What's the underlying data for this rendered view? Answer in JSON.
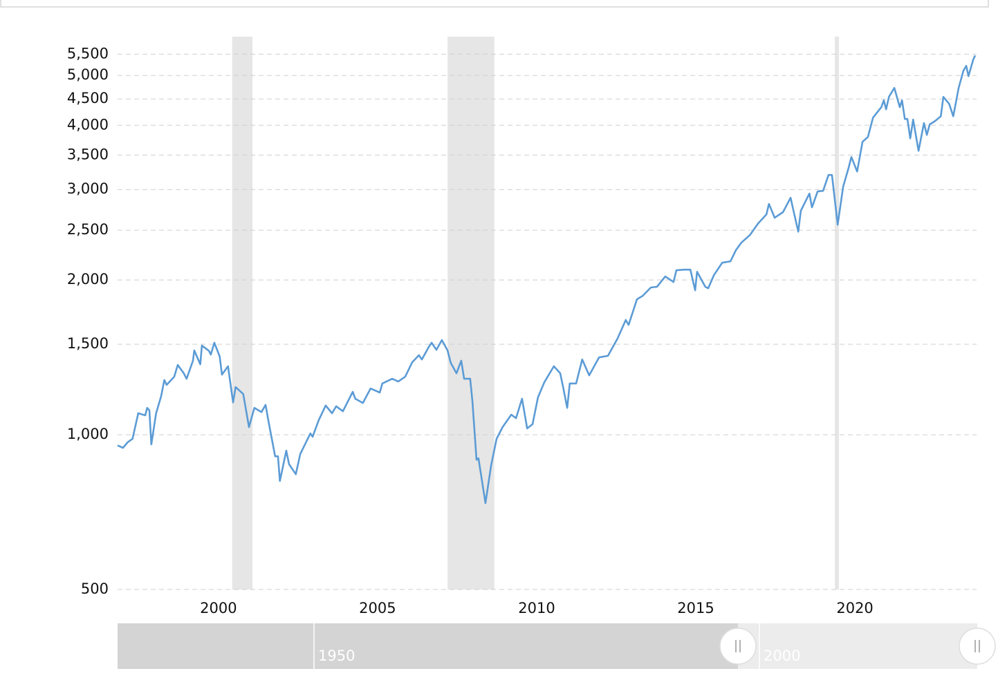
{
  "chart_data": {
    "type": "line",
    "log_scale": true,
    "grid": true,
    "color": "#5b9bd5",
    "xlim": [
      1996.83,
      2023.78
    ],
    "ylim": [
      500,
      5950
    ],
    "xticks": [
      2000,
      2005,
      2010,
      2015,
      2020
    ],
    "yticks": [
      {
        "value": 500,
        "label": "500"
      },
      {
        "value": 1000,
        "label": "1,000"
      },
      {
        "value": 1500,
        "label": "1,500"
      },
      {
        "value": 2000,
        "label": "2,000"
      },
      {
        "value": 2500,
        "label": "2,500"
      },
      {
        "value": 3000,
        "label": "3,000"
      },
      {
        "value": 3500,
        "label": "3,500"
      },
      {
        "value": 4000,
        "label": "4,000"
      },
      {
        "value": 4500,
        "label": "4,500"
      },
      {
        "value": 5000,
        "label": "5,000"
      },
      {
        "value": 5500,
        "label": "5,500"
      }
    ],
    "recessions": [
      [
        2000.43,
        2001.07
      ],
      [
        2007.2,
        2008.67
      ],
      [
        2019.37,
        2019.5
      ]
    ],
    "x": [
      1996.83,
      1997.0,
      1997.15,
      1997.3,
      1997.48,
      1997.7,
      1997.76,
      1997.83,
      1997.89,
      1998.04,
      1998.2,
      1998.3,
      1998.37,
      1998.61,
      1998.72,
      1998.91,
      1999.0,
      1999.2,
      1999.24,
      1999.43,
      1999.48,
      1999.7,
      1999.76,
      1999.87,
      2000.04,
      2000.11,
      2000.3,
      2000.46,
      2000.54,
      2000.78,
      2000.96,
      2001.13,
      2001.35,
      2001.48,
      2001.57,
      2001.78,
      2001.87,
      2001.93,
      2002.13,
      2002.22,
      2002.43,
      2002.57,
      2002.78,
      2002.89,
      2002.96,
      2003.15,
      2003.37,
      2003.57,
      2003.7,
      2003.91,
      2004.22,
      2004.3,
      2004.54,
      2004.78,
      2005.07,
      2005.15,
      2005.46,
      2005.65,
      2005.87,
      2006.09,
      2006.3,
      2006.39,
      2006.61,
      2006.7,
      2006.85,
      2007.02,
      2007.2,
      2007.3,
      2007.48,
      2007.63,
      2007.72,
      2007.91,
      2007.98,
      2008.11,
      2008.17,
      2008.39,
      2008.57,
      2008.74,
      2008.93,
      2009.2,
      2009.35,
      2009.54,
      2009.7,
      2009.87,
      2010.04,
      2010.24,
      2010.54,
      2010.74,
      2010.83,
      2010.96,
      2011.04,
      2011.24,
      2011.43,
      2011.65,
      2011.96,
      2012.24,
      2012.54,
      2012.8,
      2012.89,
      2013.15,
      2013.33,
      2013.59,
      2013.78,
      2014.04,
      2014.3,
      2014.39,
      2014.65,
      2014.83,
      2014.98,
      2015.04,
      2015.3,
      2015.39,
      2015.57,
      2015.83,
      2016.09,
      2016.26,
      2016.43,
      2016.7,
      2016.96,
      2017.22,
      2017.3,
      2017.48,
      2017.74,
      2017.98,
      2018.07,
      2018.22,
      2018.3,
      2018.57,
      2018.65,
      2018.83,
      2019.0,
      2019.17,
      2019.28,
      2019.46,
      2019.63,
      2019.8,
      2019.89,
      2020.07,
      2020.24,
      2020.41,
      2020.57,
      2020.83,
      2020.91,
      2020.98,
      2021.07,
      2021.24,
      2021.41,
      2021.48,
      2021.57,
      2021.65,
      2021.74,
      2021.83,
      2022.0,
      2022.17,
      2022.26,
      2022.35,
      2022.52,
      2022.7,
      2022.78,
      2022.96,
      2023.09,
      2023.26,
      2023.41,
      2023.5,
      2023.57,
      2023.72,
      2023.78
    ],
    "values": [
      953,
      943,
      967,
      982,
      1101,
      1091,
      1128,
      1115,
      958,
      1101,
      1189,
      1278,
      1250,
      1297,
      1367,
      1317,
      1285,
      1393,
      1459,
      1371,
      1491,
      1456,
      1432,
      1510,
      1419,
      1309,
      1359,
      1156,
      1238,
      1200,
      1035,
      1128,
      1107,
      1143,
      1064,
      908,
      908,
      813,
      931,
      876,
      838,
      917,
      975,
      1006,
      991,
      1067,
      1140,
      1101,
      1136,
      1111,
      1212,
      1175,
      1153,
      1230,
      1208,
      1258,
      1285,
      1269,
      1297,
      1384,
      1428,
      1401,
      1482,
      1510,
      1463,
      1528,
      1459,
      1380,
      1317,
      1393,
      1285,
      1285,
      1164,
      894,
      900,
      736,
      873,
      982,
      1035,
      1094,
      1077,
      1175,
      1029,
      1048,
      1182,
      1265,
      1359,
      1317,
      1238,
      1128,
      1258,
      1258,
      1401,
      1305,
      1414,
      1424,
      1538,
      1672,
      1636,
      1834,
      1863,
      1934,
      1940,
      2032,
      1982,
      2089,
      2095,
      2095,
      1910,
      2075,
      1940,
      1927,
      2044,
      2161,
      2175,
      2286,
      2364,
      2446,
      2578,
      2684,
      2812,
      2643,
      2710,
      2891,
      2727,
      2484,
      2727,
      2946,
      2770,
      2973,
      2982,
      3202,
      3202,
      2563,
      3038,
      3303,
      3470,
      3252,
      3715,
      3796,
      4139,
      4337,
      4473,
      4296,
      4543,
      4729,
      4337,
      4473,
      4114,
      4114,
      3772,
      4102,
      3568,
      4039,
      3831,
      4015,
      4077,
      4165,
      4543,
      4404,
      4165,
      4729,
      5108,
      5219,
      4985,
      5369,
      5470
    ],
    "navigator": {
      "labels": [
        "1950",
        "2000"
      ]
    }
  }
}
